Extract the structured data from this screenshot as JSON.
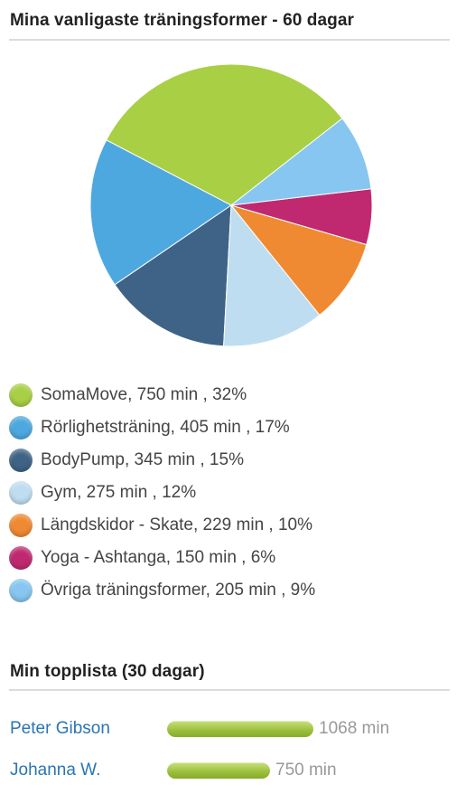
{
  "top_section": {
    "title": "Mina vanligaste träningsformer - 60 dagar"
  },
  "chart_data": {
    "type": "pie",
    "slices": [
      {
        "label": "SomaMove, 750 min , 32%",
        "name": "SomaMove",
        "minutes": 750,
        "percent": 32,
        "color": "#a9cf45"
      },
      {
        "label": "Rörlighetsträning, 405 min , 17%",
        "name": "Rörlighetsträning",
        "minutes": 405,
        "percent": 17,
        "color": "#4ea8e0"
      },
      {
        "label": "BodyPump, 345 min , 15%",
        "name": "BodyPump",
        "minutes": 345,
        "percent": 15,
        "color": "#3f6386"
      },
      {
        "label": "Gym, 275 min , 12%",
        "name": "Gym",
        "minutes": 275,
        "percent": 12,
        "color": "#bfddf0"
      },
      {
        "label": "Längdskidor - Skate, 229 min , 10%",
        "name": "Längdskidor - Skate",
        "minutes": 229,
        "percent": 10,
        "color": "#ef8a32"
      },
      {
        "label": "Yoga - Ashtanga, 150 min , 6%",
        "name": "Yoga - Ashtanga",
        "minutes": 150,
        "percent": 6,
        "color": "#c0296f"
      },
      {
        "label": "Övriga träningsformer, 205 min , 9%",
        "name": "Övriga träningsformer",
        "minutes": 205,
        "percent": 9,
        "color": "#86c6f0"
      }
    ]
  },
  "toplist": {
    "title": "Min topplista (30 dagar)",
    "entries": [
      {
        "name": "Peter Gibson",
        "minutes": 1068,
        "value_label": "1068 min"
      },
      {
        "name": "Johanna W.",
        "minutes": 750,
        "value_label": "750 min"
      }
    ]
  }
}
